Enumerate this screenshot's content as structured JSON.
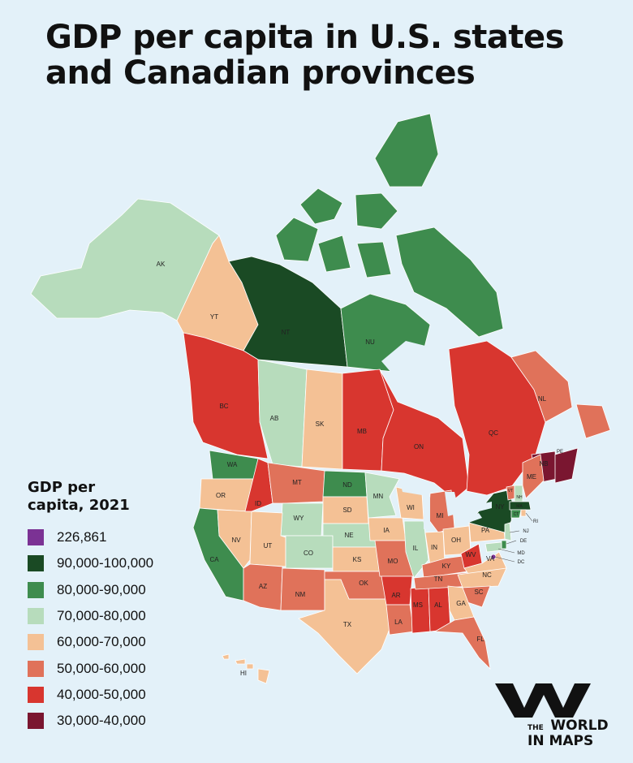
{
  "title": {
    "line1": "GDP per capita in U.S. states",
    "line2": "and Canadian provinces"
  },
  "legend": {
    "title_line1": "GDP per",
    "title_line2": "capita, 2021",
    "items": [
      {
        "label": "226,861",
        "color": "#7b3294"
      },
      {
        "label": "90,000-100,000",
        "color": "#1a4a24"
      },
      {
        "label": "80,000-90,000",
        "color": "#3e8c4e"
      },
      {
        "label": "70,000-80,000",
        "color": "#b7dcbc"
      },
      {
        "label": "60,000-70,000",
        "color": "#f4c195"
      },
      {
        "label": "50,000-60,000",
        "color": "#e0725a"
      },
      {
        "label": "40,000-50,000",
        "color": "#d8362f"
      },
      {
        "label": "30,000-40,000",
        "color": "#7a1630"
      }
    ]
  },
  "regions": [
    {
      "abbr": "AK",
      "color": "#b7dcbc"
    },
    {
      "abbr": "YT",
      "color": "#f4c195"
    },
    {
      "abbr": "NT",
      "color": "#1a4a24"
    },
    {
      "abbr": "NU",
      "color": "#3e8c4e"
    },
    {
      "abbr": "BC",
      "color": "#d8362f"
    },
    {
      "abbr": "AB",
      "color": "#b7dcbc"
    },
    {
      "abbr": "SK",
      "color": "#f4c195"
    },
    {
      "abbr": "MB",
      "color": "#d8362f"
    },
    {
      "abbr": "ON",
      "color": "#d8362f"
    },
    {
      "abbr": "QC",
      "color": "#d8362f"
    },
    {
      "abbr": "NL",
      "color": "#e0725a"
    },
    {
      "abbr": "NB",
      "color": "#7a1630"
    },
    {
      "abbr": "PE",
      "color": "#7a1630"
    },
    {
      "abbr": "WA",
      "color": "#3e8c4e"
    },
    {
      "abbr": "OR",
      "color": "#f4c195"
    },
    {
      "abbr": "CA",
      "color": "#3e8c4e"
    },
    {
      "abbr": "NV",
      "color": "#f4c195"
    },
    {
      "abbr": "ID",
      "color": "#d8362f"
    },
    {
      "abbr": "MT",
      "color": "#e0725a"
    },
    {
      "abbr": "WY",
      "color": "#b7dcbc"
    },
    {
      "abbr": "UT",
      "color": "#f4c195"
    },
    {
      "abbr": "CO",
      "color": "#b7dcbc"
    },
    {
      "abbr": "AZ",
      "color": "#e0725a"
    },
    {
      "abbr": "NM",
      "color": "#e0725a"
    },
    {
      "abbr": "ND",
      "color": "#3e8c4e"
    },
    {
      "abbr": "SD",
      "color": "#f4c195"
    },
    {
      "abbr": "NE",
      "color": "#b7dcbc"
    },
    {
      "abbr": "KS",
      "color": "#f4c195"
    },
    {
      "abbr": "OK",
      "color": "#e0725a"
    },
    {
      "abbr": "TX",
      "color": "#f4c195"
    },
    {
      "abbr": "MN",
      "color": "#b7dcbc"
    },
    {
      "abbr": "IA",
      "color": "#f4c195"
    },
    {
      "abbr": "MO",
      "color": "#e0725a"
    },
    {
      "abbr": "AR",
      "color": "#d8362f"
    },
    {
      "abbr": "LA",
      "color": "#e0725a"
    },
    {
      "abbr": "WI",
      "color": "#f4c195"
    },
    {
      "abbr": "IL",
      "color": "#b7dcbc"
    },
    {
      "abbr": "MS",
      "color": "#d8362f"
    },
    {
      "abbr": "MI",
      "color": "#e0725a"
    },
    {
      "abbr": "IN",
      "color": "#f4c195"
    },
    {
      "abbr": "KY",
      "color": "#e0725a"
    },
    {
      "abbr": "TN",
      "color": "#e0725a"
    },
    {
      "abbr": "AL",
      "color": "#d8362f"
    },
    {
      "abbr": "OH",
      "color": "#f4c195"
    },
    {
      "abbr": "WV",
      "color": "#d8362f"
    },
    {
      "abbr": "GA",
      "color": "#f4c195"
    },
    {
      "abbr": "FL",
      "color": "#e0725a"
    },
    {
      "abbr": "SC",
      "color": "#e0725a"
    },
    {
      "abbr": "NC",
      "color": "#f4c195"
    },
    {
      "abbr": "VA",
      "color": "#f4c195"
    },
    {
      "abbr": "PA",
      "color": "#f4c195"
    },
    {
      "abbr": "NY",
      "color": "#1a4a24"
    },
    {
      "abbr": "VT",
      "color": "#e0725a"
    },
    {
      "abbr": "NH",
      "color": "#b7dcbc"
    },
    {
      "abbr": "ME",
      "color": "#e0725a"
    },
    {
      "abbr": "MA",
      "color": "#1a4a24"
    },
    {
      "abbr": "CT",
      "color": "#3e8c4e"
    },
    {
      "abbr": "RI",
      "color": "#f4c195"
    },
    {
      "abbr": "NJ",
      "color": "#b7dcbc"
    },
    {
      "abbr": "DE",
      "color": "#3e8c4e"
    },
    {
      "abbr": "MD",
      "color": "#b7dcbc"
    },
    {
      "abbr": "DC",
      "color": "#7b3294"
    },
    {
      "abbr": "HI",
      "color": "#f4c195"
    }
  ],
  "brand": {
    "small": "THE",
    "line1": "WORLD",
    "line2": "IN MAPS"
  }
}
